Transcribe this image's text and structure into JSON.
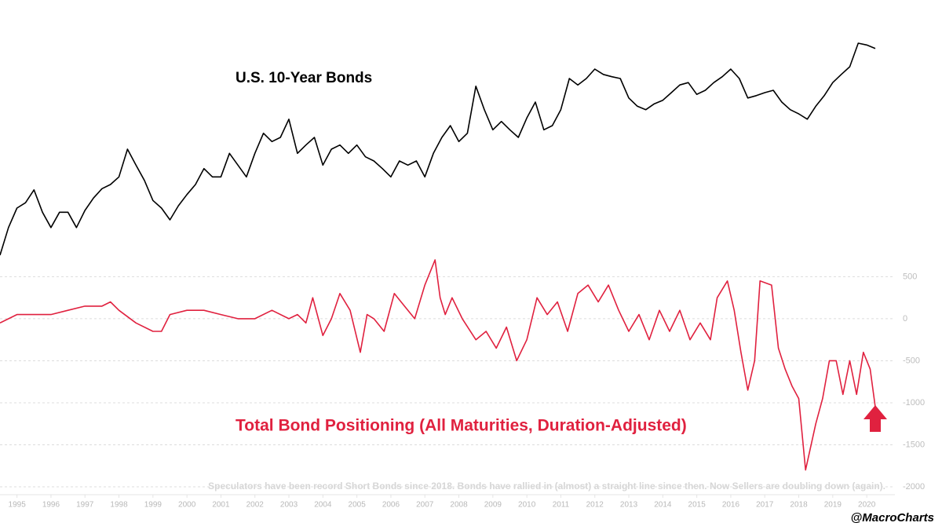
{
  "chart_data": [
    {
      "type": "line",
      "title": "U.S. 10-Year Bonds",
      "color": "#000000",
      "xlim": [
        1995,
        2020.82
      ],
      "ylim": [
        100,
        140
      ],
      "x": [
        1995.0,
        1995.25,
        1995.5,
        1995.75,
        1996.0,
        1996.25,
        1996.5,
        1996.75,
        1997.0,
        1997.25,
        1997.5,
        1997.75,
        1998.0,
        1998.25,
        1998.5,
        1998.75,
        1999.0,
        1999.25,
        1999.5,
        1999.75,
        2000.0,
        2000.25,
        2000.5,
        2000.75,
        2001.0,
        2001.25,
        2001.5,
        2001.75,
        2002.0,
        2002.25,
        2002.5,
        2002.75,
        2003.0,
        2003.25,
        2003.5,
        2003.75,
        2004.0,
        2004.25,
        2004.5,
        2004.75,
        2005.0,
        2005.25,
        2005.5,
        2005.75,
        2006.0,
        2006.25,
        2006.5,
        2006.75,
        2007.0,
        2007.25,
        2007.5,
        2007.75,
        2008.0,
        2008.25,
        2008.5,
        2008.75,
        2009.0,
        2009.25,
        2009.5,
        2009.75,
        2010.0,
        2010.25,
        2010.5,
        2010.75,
        2011.0,
        2011.25,
        2011.5,
        2011.75,
        2012.0,
        2012.25,
        2012.5,
        2012.75,
        2013.0,
        2013.25,
        2013.5,
        2013.75,
        2014.0,
        2014.25,
        2014.5,
        2014.75,
        2015.0,
        2015.25,
        2015.5,
        2015.75,
        2016.0,
        2016.25,
        2016.5,
        2016.75,
        2017.0,
        2017.25,
        2017.5,
        2017.75,
        2018.0,
        2018.25,
        2018.5,
        2018.75,
        2019.0,
        2019.25,
        2019.5,
        2019.75,
        2020.0,
        2020.25,
        2020.5,
        2020.75
      ],
      "values": [
        102.0,
        106.7,
        110.0,
        110.9,
        113.1,
        109.3,
        106.7,
        109.3,
        109.3,
        106.7,
        109.6,
        111.7,
        113.3,
        114.0,
        115.3,
        120.0,
        117.3,
        114.7,
        111.3,
        110.0,
        108.0,
        110.4,
        112.3,
        114.0,
        116.7,
        115.3,
        115.3,
        119.3,
        117.3,
        115.3,
        119.3,
        122.7,
        121.3,
        122.0,
        125.1,
        119.3,
        120.7,
        122.0,
        117.3,
        120.0,
        120.7,
        119.3,
        120.7,
        118.7,
        118.0,
        116.7,
        115.3,
        118.0,
        117.3,
        118.0,
        115.3,
        119.3,
        122.0,
        124.0,
        121.3,
        122.7,
        130.7,
        126.7,
        123.3,
        124.7,
        123.3,
        122.0,
        125.3,
        128.0,
        123.3,
        124.0,
        126.7,
        132.0,
        130.9,
        132.0,
        133.6,
        132.7,
        132.3,
        132.0,
        128.7,
        127.3,
        126.7,
        127.7,
        128.3,
        129.6,
        130.9,
        131.3,
        129.3,
        130.0,
        131.3,
        132.3,
        133.6,
        132.0,
        128.7,
        129.1,
        129.6,
        130.0,
        128.0,
        126.7,
        126.0,
        125.1,
        127.3,
        129.1,
        131.3,
        132.7,
        134.0,
        138.0,
        137.7,
        137.1
      ]
    },
    {
      "type": "line",
      "title": "Total Bond Positioning (All Maturities, Duration-Adjusted)",
      "color": "#e0213f",
      "note": "Speculators have been record Short Bonds since 2018. Bonds have rallied in (almost) a straight line since then. Now Sellers are doubling down (again).",
      "xlim": [
        1995,
        2020.82
      ],
      "ylim": [
        -2000,
        700
      ],
      "yticks": [
        500,
        0,
        -500,
        -1000,
        -1500,
        -2000
      ],
      "grid": true,
      "xticks": [
        {
          "value": 1995.5,
          "label": "1995"
        },
        {
          "value": 1996.5,
          "label": "1996"
        },
        {
          "value": 1997.5,
          "label": "1997"
        },
        {
          "value": 1998.5,
          "label": "1998"
        },
        {
          "value": 1999.5,
          "label": "1999"
        },
        {
          "value": 2000.5,
          "label": "2000"
        },
        {
          "value": 2001.5,
          "label": "2001"
        },
        {
          "value": 2002.5,
          "label": "2002"
        },
        {
          "value": 2003.5,
          "label": "2003"
        },
        {
          "value": 2004.5,
          "label": "2004"
        },
        {
          "value": 2005.5,
          "label": "2005"
        },
        {
          "value": 2006.5,
          "label": "2006"
        },
        {
          "value": 2007.5,
          "label": "2007"
        },
        {
          "value": 2008.5,
          "label": "2008"
        },
        {
          "value": 2009.5,
          "label": "2009"
        },
        {
          "value": 2010.5,
          "label": "2010"
        },
        {
          "value": 2011.5,
          "label": "2011"
        },
        {
          "value": 2012.5,
          "label": "2012"
        },
        {
          "value": 2013.5,
          "label": "2013"
        },
        {
          "value": 2014.5,
          "label": "2014"
        },
        {
          "value": 2015.5,
          "label": "2015"
        },
        {
          "value": 2016.5,
          "label": "2016"
        },
        {
          "value": 2017.5,
          "label": "2017"
        },
        {
          "value": 2018.5,
          "label": "2018"
        },
        {
          "value": 2019.5,
          "label": "2019"
        },
        {
          "value": 2020.5,
          "label": "2020"
        }
      ],
      "x": [
        1995.0,
        1995.5,
        1996.0,
        1996.5,
        1997.0,
        1997.5,
        1998.0,
        1998.25,
        1998.5,
        1999.0,
        1999.5,
        1999.75,
        2000.0,
        2000.5,
        2001.0,
        2001.5,
        2002.0,
        2002.5,
        2003.0,
        2003.5,
        2003.75,
        2004.0,
        2004.2,
        2004.5,
        2004.75,
        2005.0,
        2005.3,
        2005.6,
        2005.8,
        2006.0,
        2006.3,
        2006.6,
        2006.9,
        2007.2,
        2007.5,
        2007.8,
        2007.95,
        2008.1,
        2008.3,
        2008.6,
        2009.0,
        2009.3,
        2009.6,
        2009.9,
        2010.2,
        2010.5,
        2010.8,
        2011.1,
        2011.4,
        2011.7,
        2012.0,
        2012.3,
        2012.6,
        2012.9,
        2013.2,
        2013.5,
        2013.8,
        2014.1,
        2014.4,
        2014.7,
        2015.0,
        2015.3,
        2015.6,
        2015.9,
        2016.1,
        2016.4,
        2016.6,
        2016.8,
        2017.0,
        2017.2,
        2017.36,
        2017.7,
        2017.9,
        2018.1,
        2018.3,
        2018.5,
        2018.7,
        2019.0,
        2019.2,
        2019.4,
        2019.6,
        2019.8,
        2020.0,
        2020.2,
        2020.4,
        2020.6,
        2020.75
      ],
      "values": [
        -50,
        50,
        50,
        50,
        100,
        150,
        150,
        200,
        100,
        -50,
        -150,
        -150,
        50,
        100,
        100,
        50,
        0,
        0,
        100,
        0,
        50,
        -50,
        250,
        -200,
        0,
        300,
        100,
        -400,
        50,
        0,
        -150,
        300,
        150,
        0,
        400,
        700,
        250,
        50,
        250,
        0,
        -250,
        -150,
        -350,
        -100,
        -500,
        -250,
        250,
        50,
        200,
        -150,
        300,
        400,
        200,
        400,
        100,
        -150,
        50,
        -250,
        100,
        -150,
        100,
        -250,
        -50,
        -250,
        250,
        450,
        100,
        -400,
        -850,
        -500,
        450,
        400,
        -350,
        -600,
        -800,
        -950,
        -1800,
        -1250,
        -950,
        -500,
        -500,
        -900,
        -500,
        -900,
        -400,
        -600,
        -1050
      ]
    }
  ],
  "credit": "@MacroCharts"
}
